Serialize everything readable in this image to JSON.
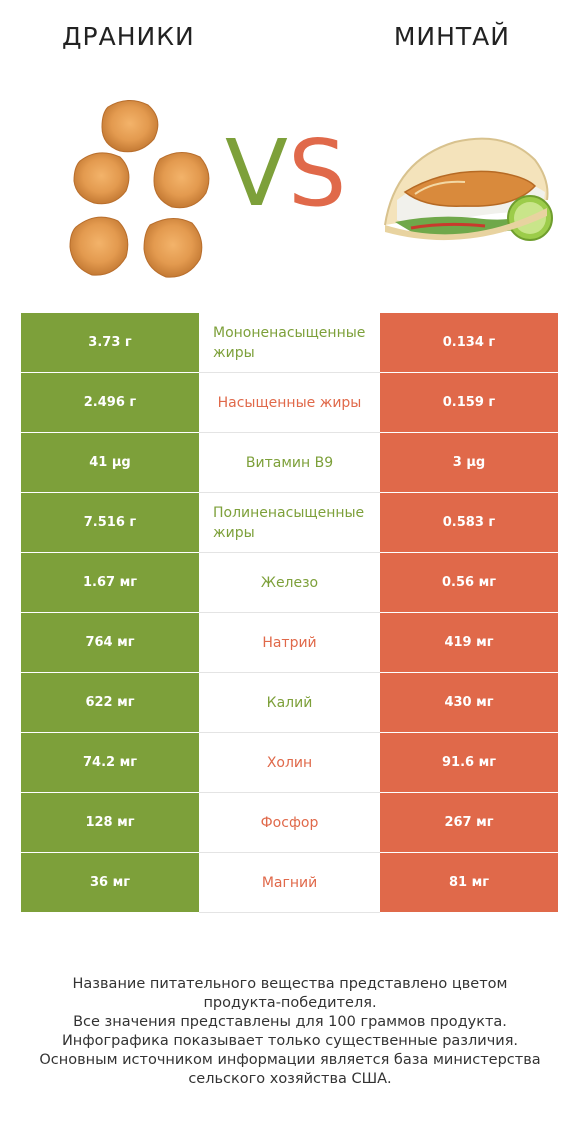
{
  "header": {
    "left_title": "ДРАНИКИ",
    "right_title": "МИНТАЙ",
    "vs_v": "V",
    "vs_s": "S"
  },
  "images": {
    "left": "draniki-potato-pancakes",
    "right": "pollock-fish-taco"
  },
  "colors": {
    "left": "#7da03a",
    "right": "#e0694a"
  },
  "rows": [
    {
      "left": "3.73 г",
      "nutrient": "Мононенасыщенные жиры",
      "right": "0.134 г",
      "winner": "left"
    },
    {
      "left": "2.496 г",
      "nutrient": "Насыщенные жиры",
      "right": "0.159 г",
      "winner": "right"
    },
    {
      "left": "41 µg",
      "nutrient": "Витамин B9",
      "right": "3 µg",
      "winner": "left"
    },
    {
      "left": "7.516 г",
      "nutrient": "Полиненасыщенные жиры",
      "right": "0.583 г",
      "winner": "left"
    },
    {
      "left": "1.67 мг",
      "nutrient": "Железо",
      "right": "0.56 мг",
      "winner": "left"
    },
    {
      "left": "764 мг",
      "nutrient": "Натрий",
      "right": "419 мг",
      "winner": "right"
    },
    {
      "left": "622 мг",
      "nutrient": "Калий",
      "right": "430 мг",
      "winner": "left"
    },
    {
      "left": "74.2 мг",
      "nutrient": "Холин",
      "right": "91.6 мг",
      "winner": "right"
    },
    {
      "left": "128 мг",
      "nutrient": "Фосфор",
      "right": "267 мг",
      "winner": "right"
    },
    {
      "left": "36 мг",
      "nutrient": "Магний",
      "right": "81 мг",
      "winner": "right"
    }
  ],
  "footer": {
    "line1": "Название питательного вещества представлено цветом",
    "line2": "продукта-победителя.",
    "line3": "Все значения представлены для 100 граммов продукта.",
    "line4": "Инфографика показывает только существенные различия.",
    "line5": "Основным источником информации является база министерства",
    "line6": "сельского хозяйства США."
  }
}
